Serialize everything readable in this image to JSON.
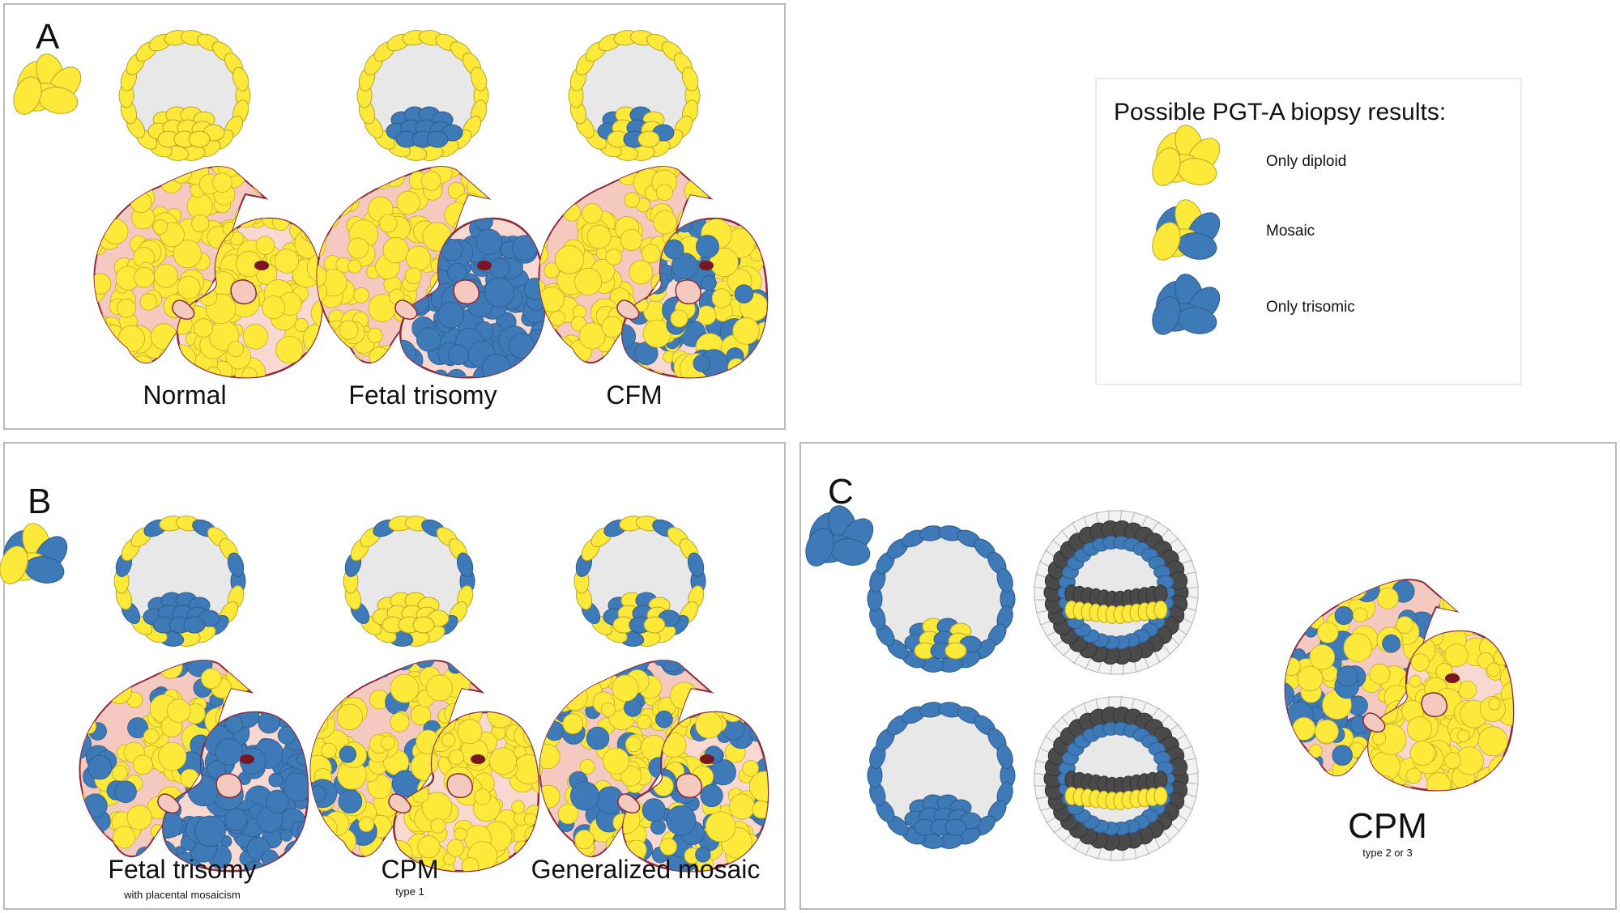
{
  "panels": {
    "a": {
      "letter": "A",
      "captions": [
        "Normal",
        "Fetal trisomy",
        "CFM"
      ]
    },
    "b": {
      "letter": "B",
      "captions": [
        "Fetal trisomy",
        "CPM",
        "Generalized mosaic"
      ],
      "subcaptions": [
        "with placental mosaicism",
        "type 1",
        ""
      ]
    },
    "c": {
      "letter": "C",
      "caption": "CPM",
      "subcaption": "type 2 or 3"
    }
  },
  "legend": {
    "title": "Possible PGT-A biopsy results:",
    "items": [
      {
        "label": "Only diploid",
        "cells": "yellow"
      },
      {
        "label": "Mosaic",
        "cells": "mixed"
      },
      {
        "label": "Only trisomic",
        "cells": "blue"
      }
    ]
  },
  "colors": {
    "diploid": "#fde93a",
    "trisomic": "#3f7ab8",
    "cavity": "#e8e8e8",
    "outline": "#8c2a3a",
    "zona_dark": "#4a4a4a"
  }
}
